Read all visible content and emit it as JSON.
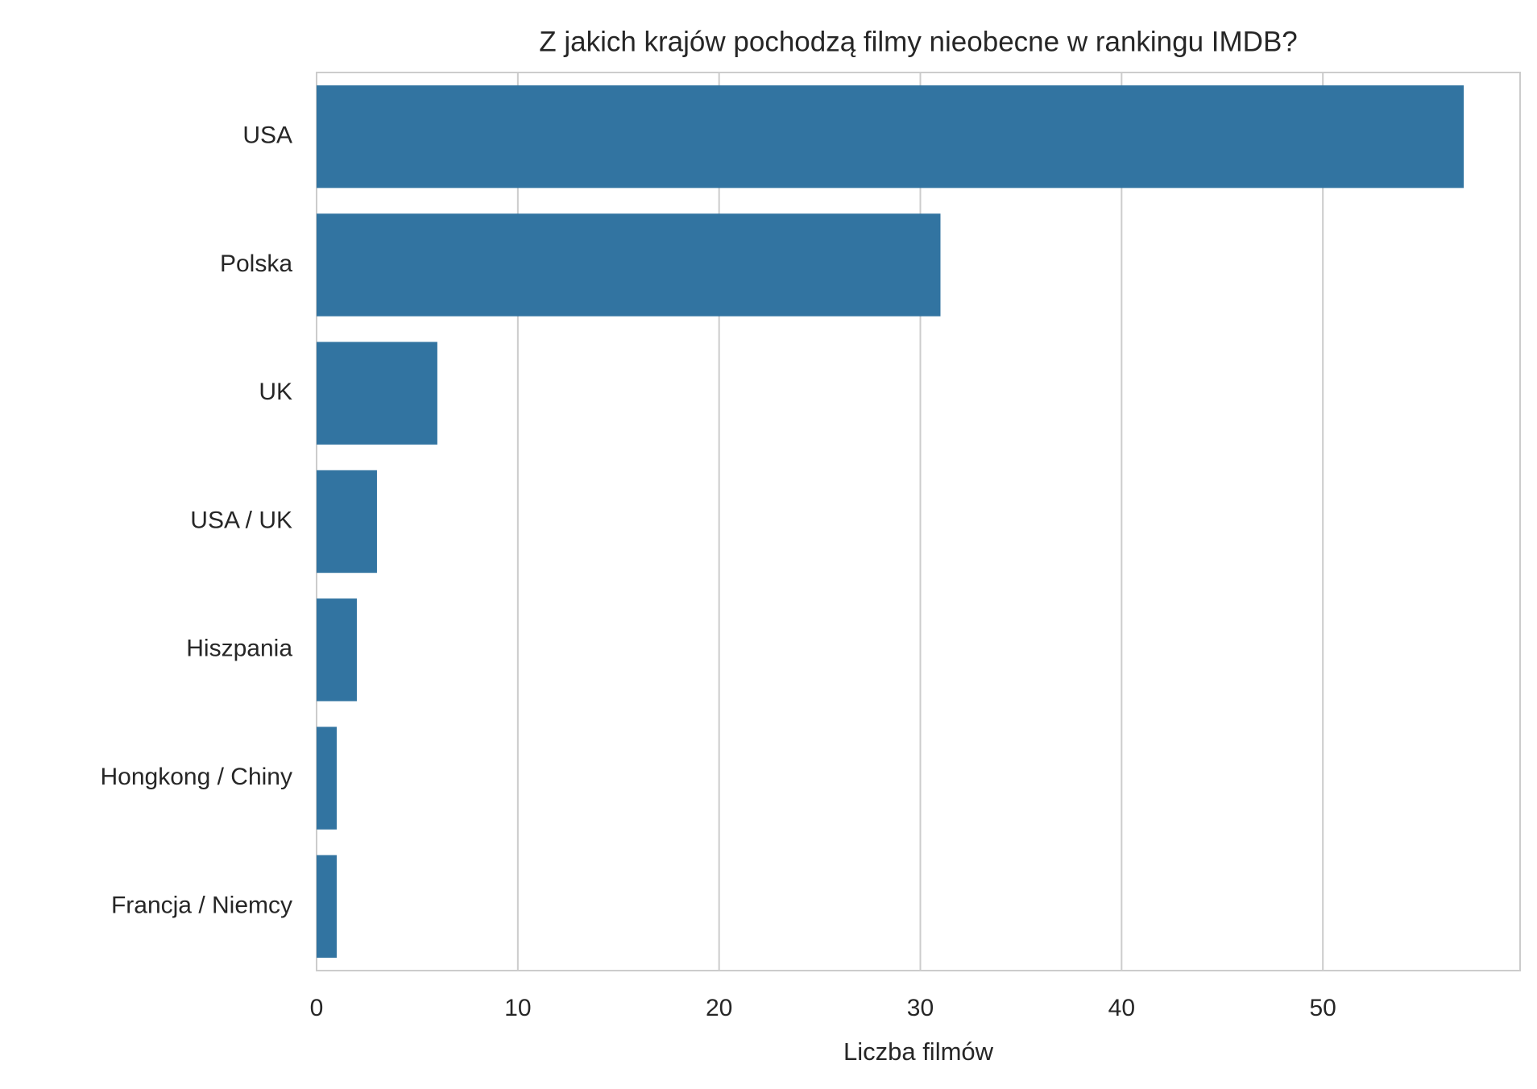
{
  "chart_data": {
    "type": "bar",
    "orientation": "horizontal",
    "title": "Z jakich krajów pochodzą filmy nieobecne w rankingu IMDB?",
    "x_label": "Liczba filmów",
    "categories": [
      "USA",
      "Polska",
      "UK",
      "USA / UK",
      "Hiszpania",
      "Hongkong / Chiny",
      "Francja / Niemcy"
    ],
    "values": [
      57,
      31,
      6,
      3,
      2,
      1,
      1
    ],
    "color": "#3274a1",
    "xlim": [
      0,
      59.8
    ],
    "xticks": [
      0,
      10,
      20,
      30,
      40,
      50
    ],
    "grid": true
  }
}
